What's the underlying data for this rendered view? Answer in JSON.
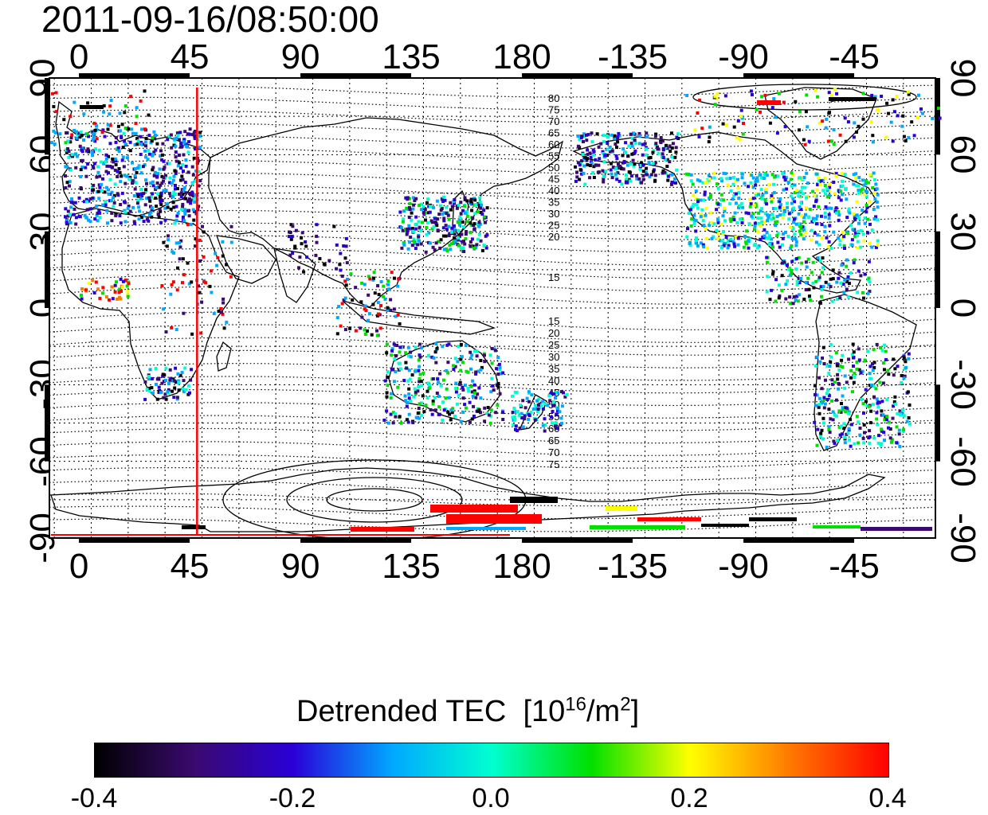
{
  "timestamp": "2011-09-16/08:50:00",
  "top_ticks": [
    "0",
    "45",
    "90",
    "135",
    "180",
    "-135",
    "-90",
    "-45"
  ],
  "bottom_ticks": [
    "0",
    "45",
    "90",
    "135",
    "180",
    "-135",
    "-90",
    "-45"
  ],
  "left_ticks": [
    "90",
    "60",
    "30",
    "0",
    "-30",
    "-60",
    "-90"
  ],
  "right_ticks": [
    "90",
    "60",
    "30",
    "0",
    "-30",
    "-60",
    "-90"
  ],
  "contour_labels_north": [
    "80",
    "75",
    "70",
    "65",
    "60",
    "55",
    "50",
    "45",
    "40",
    "35",
    "30",
    "25",
    "20",
    "15"
  ],
  "contour_labels_south": [
    "15",
    "20",
    "25",
    "30",
    "35",
    "40",
    "45",
    "50",
    "55",
    "60",
    "65",
    "70",
    "75"
  ],
  "marker_longitude_deg": 48,
  "colorbar": {
    "title_text": "Detrended TEC",
    "unit_prefix": "[10",
    "unit_exp": "16",
    "unit_mid": "/m",
    "unit_exp2": "2",
    "unit_suffix": "]",
    "ticks": [
      "-0.4",
      "-0.2",
      "0.0",
      "0.2",
      "0.4"
    ],
    "colors": [
      "#000000",
      "#3a0a6e",
      "#2a00d8",
      "#00a8ff",
      "#00ffd0",
      "#00e000",
      "#ffff00",
      "#ff7a00",
      "#ff0000"
    ]
  },
  "colors": {
    "marker_line": "#ff0000",
    "coast": "#000000",
    "grid": "#000000"
  }
}
